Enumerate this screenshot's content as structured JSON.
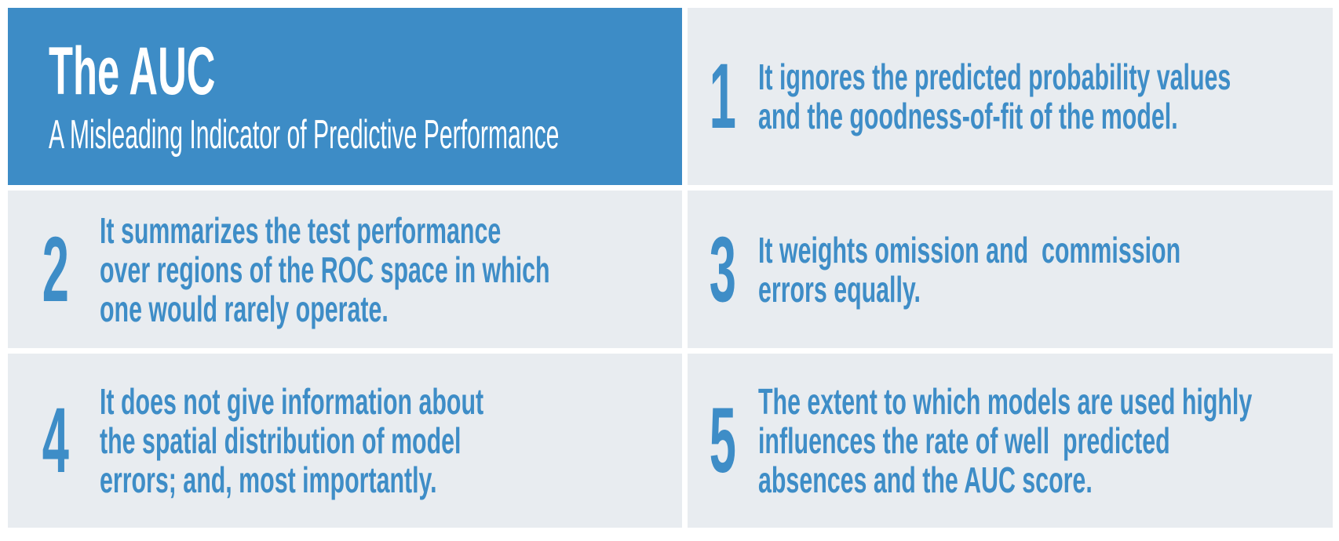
{
  "colors": {
    "accent_blue": "#3d8cc6",
    "text_blue": "#3e8dc7",
    "panel_gray": "#e8ecf0",
    "background": "#ffffff"
  },
  "header": {
    "title": "The AUC",
    "subtitle": "A Misleading Indicator of Predictive Performance"
  },
  "points": [
    {
      "number": "1",
      "text": "It ignores the predicted probability values\nand the goodness-of-fit of the model."
    },
    {
      "number": "2",
      "text": "It summarizes the test performance\nover regions of the ROC space in which\none would rarely operate."
    },
    {
      "number": "3",
      "text": "It weights omission and  commission\nerrors equally."
    },
    {
      "number": "4",
      "text": "It does not give information about\nthe spatial distribution of model\nerrors; and, most importantly."
    },
    {
      "number": "5",
      "text": "The extent to which models are used highly\ninfluences the rate of well  predicted\nabsences and the AUC score."
    }
  ]
}
